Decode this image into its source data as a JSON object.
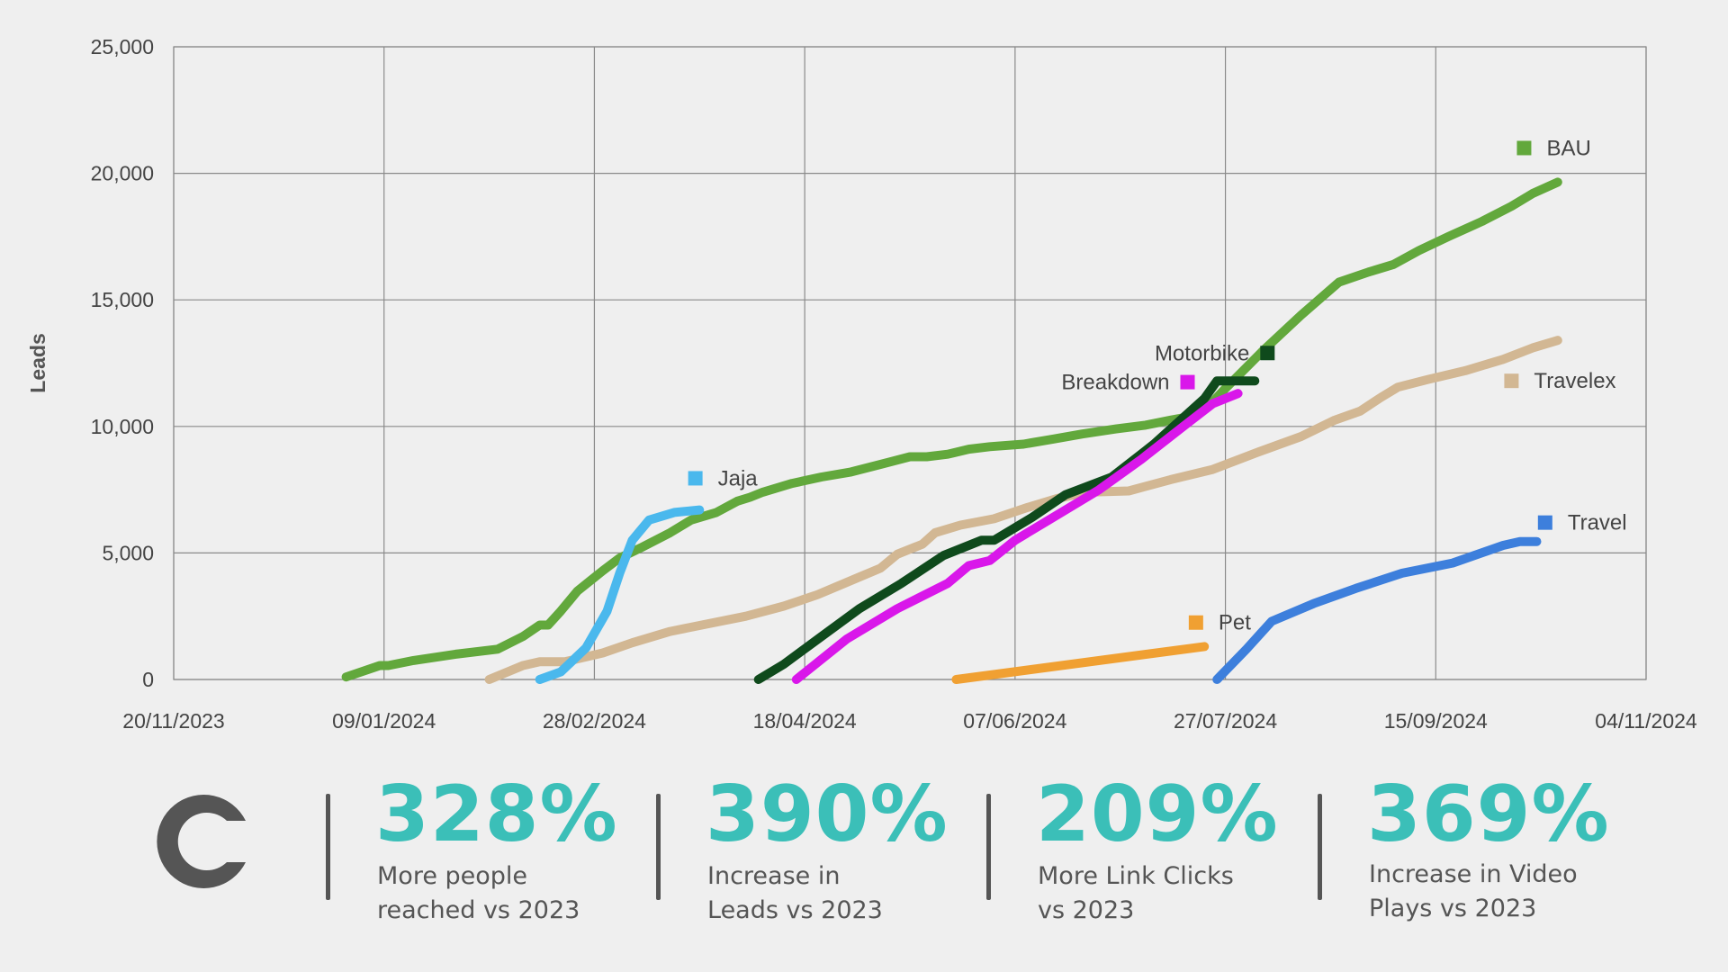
{
  "colors": {
    "accent": "#3bbfb8",
    "text_dark": "#444444",
    "logo": "#555555",
    "grid": "#8a8a8a",
    "background": "#efefef"
  },
  "chart_data": {
    "type": "line",
    "title": "",
    "xlabel": "",
    "ylabel": "Leads",
    "xlim": [
      "2023-11-20",
      "2024-11-04"
    ],
    "ylim": [
      0,
      25000
    ],
    "grid": true,
    "x_ticks": [
      "20/11/2023",
      "09/01/2024",
      "28/02/2024",
      "18/04/2024",
      "07/06/2024",
      "27/07/2024",
      "15/09/2024",
      "04/11/2024"
    ],
    "y_ticks": [
      "0",
      "5,000",
      "10,000",
      "15,000",
      "20,000",
      "25,000"
    ],
    "y_tick_values": [
      0,
      5000,
      10000,
      15000,
      20000,
      25000
    ],
    "series": [
      {
        "name": "BAU",
        "color": "#62a83c",
        "x": [
          "2023-12-31",
          "2024-01-08",
          "2024-01-10",
          "2024-01-16",
          "2024-01-26",
          "2024-02-05",
          "2024-02-11",
          "2024-02-15",
          "2024-02-17",
          "2024-02-20",
          "2024-02-24",
          "2024-02-27",
          "2024-03-01",
          "2024-03-05",
          "2024-03-10",
          "2024-03-17",
          "2024-03-22",
          "2024-03-28",
          "2024-04-02",
          "2024-04-05",
          "2024-04-08",
          "2024-04-15",
          "2024-04-22",
          "2024-04-29",
          "2024-05-06",
          "2024-05-13",
          "2024-05-17",
          "2024-05-22",
          "2024-05-27",
          "2024-06-01",
          "2024-06-09",
          "2024-06-16",
          "2024-06-23",
          "2024-07-01",
          "2024-07-08",
          "2024-07-14",
          "2024-07-19",
          "2024-07-23",
          "2024-07-27",
          "2024-08-05",
          "2024-08-14",
          "2024-08-23",
          "2024-08-30",
          "2024-09-05",
          "2024-09-11",
          "2024-09-18",
          "2024-09-26",
          "2024-10-03",
          "2024-10-08",
          "2024-10-14"
        ],
        "y": [
          100,
          550,
          550,
          750,
          1000,
          1200,
          1700,
          2150,
          2150,
          2700,
          3500,
          3900,
          4300,
          4800,
          5200,
          5800,
          6300,
          6600,
          7050,
          7200,
          7400,
          7750,
          8000,
          8200,
          8500,
          8800,
          8800,
          8900,
          9100,
          9200,
          9300,
          9500,
          9700,
          9900,
          10050,
          10250,
          10400,
          10800,
          11500,
          13000,
          14400,
          15700,
          16100,
          16400,
          16950,
          17500,
          18100,
          18700,
          19200,
          19650
        ]
      },
      {
        "name": "Travelex",
        "color": "#d2b793",
        "x": [
          "2024-02-03",
          "2024-02-11",
          "2024-02-15",
          "2024-02-21",
          "2024-03-01",
          "2024-03-08",
          "2024-03-17",
          "2024-03-26",
          "2024-04-04",
          "2024-04-13",
          "2024-04-21",
          "2024-04-26",
          "2024-05-01",
          "2024-05-06",
          "2024-05-10",
          "2024-05-16",
          "2024-05-19",
          "2024-05-25",
          "2024-06-02",
          "2024-06-10",
          "2024-06-17",
          "2024-06-24",
          "2024-07-04",
          "2024-07-14",
          "2024-07-24",
          "2024-08-04",
          "2024-08-14",
          "2024-08-22",
          "2024-08-28",
          "2024-09-02",
          "2024-09-06",
          "2024-09-13",
          "2024-09-22",
          "2024-10-01",
          "2024-10-08",
          "2024-10-14"
        ],
        "y": [
          0,
          550,
          700,
          700,
          1050,
          1450,
          1900,
          2200,
          2500,
          2900,
          3350,
          3700,
          4050,
          4400,
          4950,
          5350,
          5800,
          6100,
          6350,
          6800,
          7150,
          7400,
          7450,
          7900,
          8300,
          9000,
          9600,
          10250,
          10600,
          11150,
          11550,
          11850,
          12200,
          12650,
          13100,
          13400
        ]
      },
      {
        "name": "Jaja",
        "color": "#4ab8ed",
        "x": [
          "2024-02-15",
          "2024-02-20",
          "2024-02-26",
          "2024-03-02",
          "2024-03-05",
          "2024-03-08",
          "2024-03-12",
          "2024-03-18",
          "2024-03-24"
        ],
        "y": [
          0,
          300,
          1250,
          2700,
          4200,
          5500,
          6300,
          6600,
          6700
        ]
      },
      {
        "name": "Motorbike",
        "color": "#0f4a1c",
        "x": [
          "2024-04-07",
          "2024-04-13",
          "2024-04-22",
          "2024-05-01",
          "2024-05-11",
          "2024-05-21",
          "2024-05-30",
          "2024-06-02",
          "2024-06-11",
          "2024-06-19",
          "2024-06-30",
          "2024-07-10",
          "2024-07-22",
          "2024-07-25",
          "2024-07-31",
          "2024-08-03"
        ],
        "y": [
          0,
          600,
          1700,
          2800,
          3800,
          4900,
          5500,
          5500,
          6400,
          7300,
          8000,
          9300,
          11100,
          11800,
          11800,
          11800
        ]
      },
      {
        "name": "Breakdown",
        "color": "#d917ea",
        "x": [
          "2024-04-16",
          "2024-04-28",
          "2024-05-10",
          "2024-05-22",
          "2024-05-27",
          "2024-06-01",
          "2024-06-07",
          "2024-06-15",
          "2024-06-27",
          "2024-07-07",
          "2024-07-17",
          "2024-07-24",
          "2024-07-30"
        ],
        "y": [
          0,
          1600,
          2800,
          3800,
          4500,
          4700,
          5500,
          6300,
          7500,
          8700,
          10000,
          10900,
          11300
        ]
      },
      {
        "name": "Pet",
        "color": "#f0a032",
        "x": [
          "2024-05-24",
          "2024-07-22"
        ],
        "y": [
          0,
          1300
        ]
      },
      {
        "name": "Travel",
        "color": "#3d7fdc",
        "x": [
          "2024-07-25",
          "2024-08-01",
          "2024-08-07",
          "2024-08-17",
          "2024-08-27",
          "2024-09-07",
          "2024-09-19",
          "2024-10-01",
          "2024-10-05",
          "2024-10-09"
        ],
        "y": [
          0,
          1200,
          2300,
          3000,
          3600,
          4200,
          4600,
          5300,
          5450,
          5450
        ]
      }
    ],
    "labels": [
      {
        "text": "BAU",
        "series": "BAU",
        "color": "#62a83c",
        "date": "2024-10-06",
        "y": 21000
      },
      {
        "text": "Travelex",
        "series": "Travelex",
        "color": "#d2b793",
        "date": "2024-10-03",
        "y": 11800
      },
      {
        "text": "Jaja",
        "series": "Jaja",
        "color": "#4ab8ed",
        "date": "2024-03-23",
        "y": 7950
      },
      {
        "text": "Motorbike",
        "series": "Motorbike",
        "color": "#0f4a1c",
        "date": "2024-08-06",
        "y": 12900,
        "side": "left"
      },
      {
        "text": "Breakdown",
        "series": "Breakdown",
        "color": "#d917ea",
        "date": "2024-07-18",
        "y": 11750,
        "side": "left"
      },
      {
        "text": "Pet",
        "series": "Pet",
        "color": "#f0a032",
        "date": "2024-07-20",
        "y": 2250
      },
      {
        "text": "Travel",
        "series": "Travel",
        "color": "#3d7fdc",
        "date": "2024-10-11",
        "y": 6200
      }
    ]
  },
  "stats": [
    {
      "value": "328%",
      "line1": "More people",
      "line2": "reached vs 2023"
    },
    {
      "value": "390%",
      "line1": "Increase in",
      "line2": "Leads vs 2023"
    },
    {
      "value": "209%",
      "line1": "More Link Clicks",
      "line2": "vs 2023"
    },
    {
      "value": "369%",
      "line1": "Increase in Video",
      "line2": "Plays vs 2023"
    }
  ]
}
